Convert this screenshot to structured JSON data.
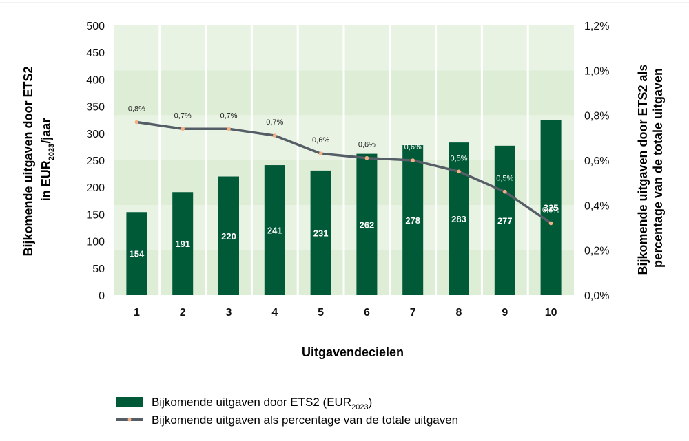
{
  "chart_data": {
    "type": "bar",
    "categories": [
      "1",
      "2",
      "3",
      "4",
      "5",
      "6",
      "7",
      "8",
      "9",
      "10"
    ],
    "series": [
      {
        "name": "Bijkomende uitgaven door ETS2 (EUR2023)",
        "type": "bar",
        "axis": "left",
        "values": [
          154,
          191,
          220,
          241,
          231,
          262,
          278,
          283,
          277,
          325
        ],
        "labels": [
          "154",
          "191",
          "220",
          "241",
          "231",
          "262",
          "278",
          "283",
          "277",
          "325"
        ]
      },
      {
        "name": "Bijkomende uitgaven als percentage van de totale uitgaven",
        "type": "line",
        "axis": "right",
        "values": [
          0.77,
          0.74,
          0.74,
          0.71,
          0.63,
          0.61,
          0.6,
          0.55,
          0.46,
          0.32
        ],
        "labels": [
          "0,8%",
          "0,7%",
          "0,7%",
          "0,7%",
          "0,6%",
          "0,6%",
          "0,6%",
          "0,5%",
          "0,5%",
          "0,3%"
        ]
      }
    ],
    "xlabel": "Uitgavendecielen",
    "ylabel_left": {
      "line1": "Bijkomende uitgaven door ETS2",
      "line2_pre": "in EUR",
      "line2_sub": "2023",
      "line2_post": "/jaar"
    },
    "ylabel_right": {
      "line1": "Bijkomende uitgaven door ETS2 als",
      "line2": "percentage van de totale uitgaven"
    },
    "ylim_left": [
      0,
      500
    ],
    "yticks_left": [
      "0",
      "50",
      "100",
      "150",
      "200",
      "250",
      "300",
      "350",
      "400",
      "450",
      "500"
    ],
    "ylim_right": [
      0,
      1.2
    ],
    "yticks_right": [
      "0,0%",
      "0,2%",
      "0,4%",
      "0,6%",
      "0,8%",
      "1,0%",
      "1,2%"
    ],
    "legend": {
      "position": "bottom-left",
      "bar_pre": "Bijkomende uitgaven door ETS2 (EUR",
      "bar_sub": "2023",
      "bar_post": ")",
      "line_label": "Bijkomende uitgaven als percentage van de totale uitgaven"
    },
    "colors": {
      "bar": "#005a37",
      "line": "#555e66",
      "marker": "#f4b183",
      "band_light": "#e9f3e4",
      "band_dark": "#deedd6"
    },
    "grid": true
  }
}
